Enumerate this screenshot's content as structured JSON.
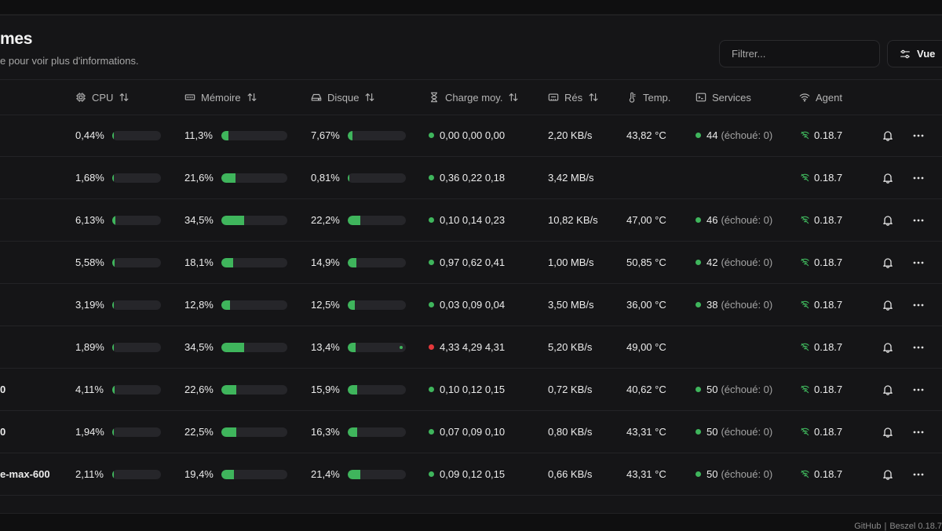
{
  "header": {
    "title": "mes",
    "subtitle": "e pour voir plus d'informations.",
    "filter_placeholder": "Filtrer...",
    "view_label": "Vue"
  },
  "columns": {
    "cpu": "CPU",
    "memory": "Mémoire",
    "disk": "Disque",
    "load": "Charge moy.",
    "net": "Rés",
    "temp": "Temp.",
    "services": "Services",
    "agent": "Agent"
  },
  "rows": [
    {
      "name": "",
      "cpu": "0,44%",
      "cpu_pct": 0.44,
      "mem": "11,3%",
      "mem_pct": 11.3,
      "disk": "7,67%",
      "disk_pct": 7.67,
      "load": "0,00 0,00 0,00",
      "load_status": "ok",
      "net": "2,20 KB/s",
      "temp": "43,82 °C",
      "services": "44",
      "services_failed": "(échoué: 0)",
      "agent": "0.18.7"
    },
    {
      "name": "",
      "cpu": "1,68%",
      "cpu_pct": 1.68,
      "mem": "21,6%",
      "mem_pct": 21.6,
      "disk": "0,81%",
      "disk_pct": 0.81,
      "load": "0,36 0,22 0,18",
      "load_status": "ok",
      "net": "3,42 MB/s",
      "temp": "",
      "services": "",
      "services_failed": "",
      "agent": "0.18.7"
    },
    {
      "name": "",
      "cpu": "6,13%",
      "cpu_pct": 6.13,
      "mem": "34,5%",
      "mem_pct": 34.5,
      "disk": "22,2%",
      "disk_pct": 22.2,
      "load": "0,10 0,14 0,23",
      "load_status": "ok",
      "net": "10,82 KB/s",
      "temp": "47,00 °C",
      "services": "46",
      "services_failed": "(échoué: 0)",
      "agent": "0.18.7"
    },
    {
      "name": "",
      "cpu": "5,58%",
      "cpu_pct": 5.58,
      "mem": "18,1%",
      "mem_pct": 18.1,
      "disk": "14,9%",
      "disk_pct": 14.9,
      "load": "0,97 0,62 0,41",
      "load_status": "ok",
      "net": "1,00 MB/s",
      "temp": "50,85 °C",
      "services": "42",
      "services_failed": "(échoué: 0)",
      "agent": "0.18.7"
    },
    {
      "name": "",
      "cpu": "3,19%",
      "cpu_pct": 3.19,
      "mem": "12,8%",
      "mem_pct": 12.8,
      "disk": "12,5%",
      "disk_pct": 12.5,
      "load": "0,03 0,09 0,04",
      "load_status": "ok",
      "net": "3,50 MB/s",
      "temp": "36,00 °C",
      "services": "38",
      "services_failed": "(échoué: 0)",
      "agent": "0.18.7"
    },
    {
      "name": "",
      "cpu": "1,89%",
      "cpu_pct": 1.89,
      "mem": "34,5%",
      "mem_pct": 34.5,
      "disk": "13,4%",
      "disk_pct": 13.4,
      "disk_extra_dot": true,
      "load": "4,33 4,29 4,31",
      "load_status": "high",
      "net": "5,20 KB/s",
      "temp": "49,00 °C",
      "services": "",
      "services_failed": "",
      "agent": "0.18.7"
    },
    {
      "name": "0",
      "cpu": "4,11%",
      "cpu_pct": 4.11,
      "mem": "22,6%",
      "mem_pct": 22.6,
      "disk": "15,9%",
      "disk_pct": 15.9,
      "load": "0,10 0,12 0,15",
      "load_status": "ok",
      "net": "0,72 KB/s",
      "temp": "40,62 °C",
      "services": "50",
      "services_failed": "(échoué: 0)",
      "agent": "0.18.7"
    },
    {
      "name": "0",
      "cpu": "1,94%",
      "cpu_pct": 1.94,
      "mem": "22,5%",
      "mem_pct": 22.5,
      "disk": "16,3%",
      "disk_pct": 16.3,
      "load": "0,07 0,09 0,10",
      "load_status": "ok",
      "net": "0,80 KB/s",
      "temp": "43,31 °C",
      "services": "50",
      "services_failed": "(échoué: 0)",
      "agent": "0.18.7"
    },
    {
      "name": "e-max-600",
      "cpu": "2,11%",
      "cpu_pct": 2.11,
      "mem": "19,4%",
      "mem_pct": 19.4,
      "disk": "21,4%",
      "disk_pct": 21.4,
      "load": "0,09 0,12 0,15",
      "load_status": "ok",
      "net": "0,66 KB/s",
      "temp": "43,31 °C",
      "services": "50",
      "services_failed": "(échoué: 0)",
      "agent": "0.18.7"
    }
  ],
  "footer": {
    "github": "GitHub",
    "separator": "|",
    "brand": "Beszel 0.18.7"
  },
  "colors": {
    "ok": "#3fb55c",
    "high": "#e5383b"
  }
}
